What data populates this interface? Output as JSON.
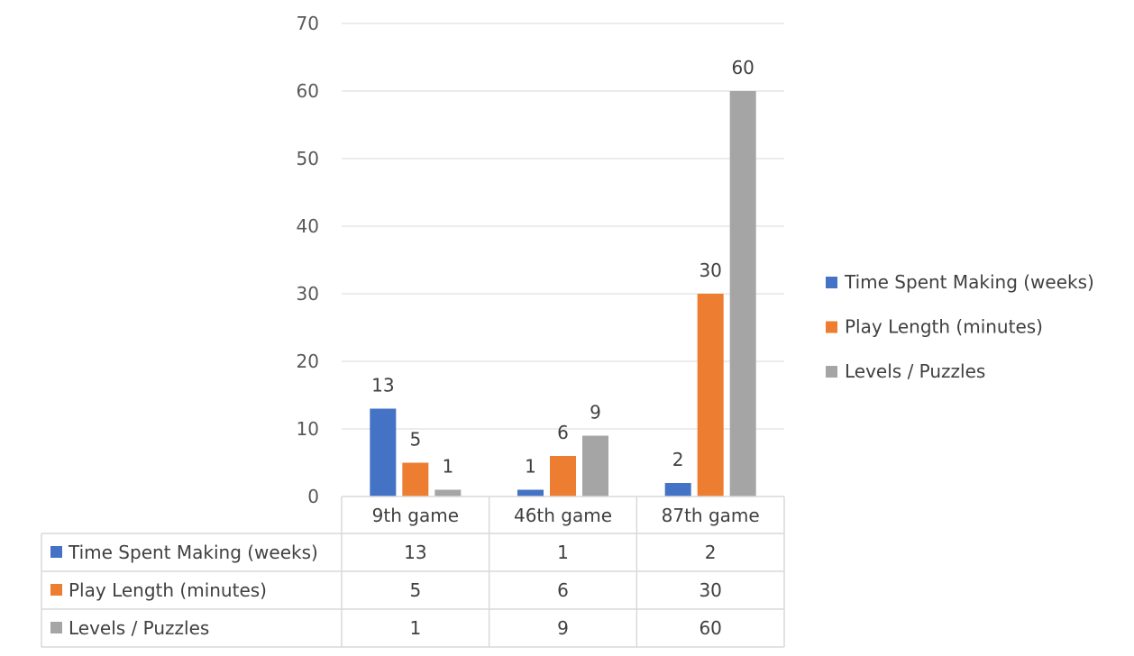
{
  "chart_data": {
    "type": "bar",
    "title": "",
    "xlabel": "",
    "ylabel": "",
    "ylim": [
      0,
      70
    ],
    "yticks": [
      0,
      10,
      20,
      30,
      40,
      50,
      60,
      70
    ],
    "grid": true,
    "legend_position": "right",
    "data_table": true,
    "categories": [
      "9th game",
      "46th game",
      "87th game"
    ],
    "series": [
      {
        "name": "Time Spent Making (weeks)",
        "color": "#4472C4",
        "values": [
          13,
          1,
          2
        ]
      },
      {
        "name": "Play Length (minutes)",
        "color": "#ED7D31",
        "values": [
          5,
          6,
          30
        ]
      },
      {
        "name": "Levels / Puzzles",
        "color": "#A5A5A5",
        "values": [
          1,
          9,
          60
        ]
      }
    ]
  }
}
